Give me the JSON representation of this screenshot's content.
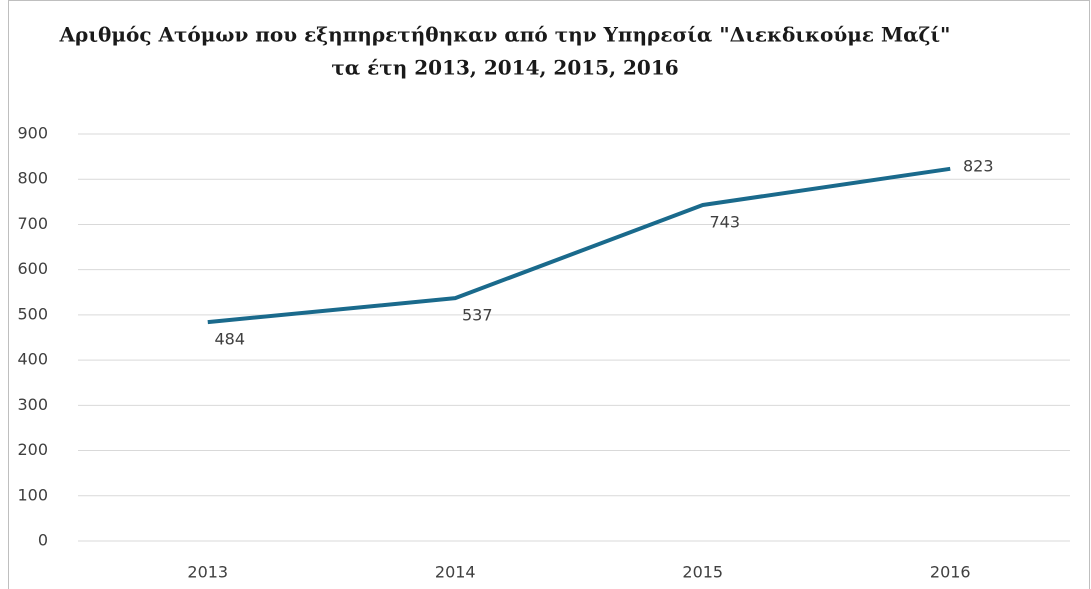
{
  "chart_data": {
    "type": "line",
    "title": [
      "Αριθμός Ατόμων που εξηπηρετήθηκαν από την Υπηρεσία \"Διεκδικούμε Μαζί\"",
      "τα έτη 2013, 2014, 2015, 2016"
    ],
    "categories": [
      "2013",
      "2014",
      "2015",
      "2016"
    ],
    "series": [
      {
        "color": "#1a6a8c",
        "values": [
          484,
          537,
          743,
          823
        ]
      }
    ],
    "ylim": [
      0,
      900
    ],
    "yticks": [
      0,
      100,
      200,
      300,
      400,
      500,
      600,
      700,
      800,
      900
    ],
    "grid": true
  }
}
